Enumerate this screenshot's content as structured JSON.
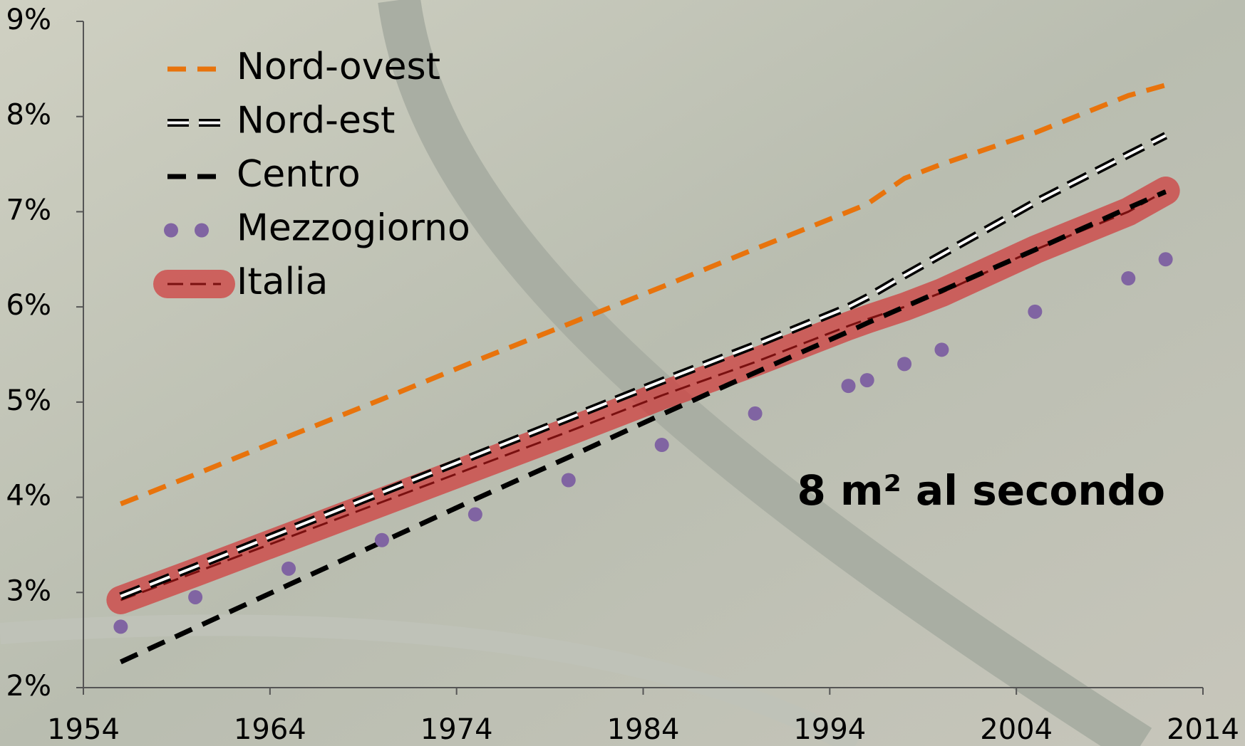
{
  "chart_data": {
    "type": "line",
    "annotation": "8 m² al secondo",
    "x": [
      1956,
      1960,
      1965,
      1970,
      1975,
      1980,
      1985,
      1990,
      1995,
      1996,
      1998,
      2000,
      2005,
      2010,
      2012
    ],
    "series": [
      {
        "name": "Nord-ovest",
        "color": "#e8730c",
        "style": "dashed",
        "values": [
          3.93,
          4.24,
          4.64,
          5.03,
          5.43,
          5.82,
          6.21,
          6.61,
          7.0,
          7.08,
          7.35,
          7.5,
          7.83,
          8.22,
          8.33
        ]
      },
      {
        "name": "Nord-est",
        "color": "#000000",
        "style": "outlined-dashed",
        "values": [
          2.96,
          3.27,
          3.66,
          4.05,
          4.44,
          4.83,
          5.22,
          5.6,
          6.0,
          6.1,
          6.33,
          6.55,
          7.1,
          7.6,
          7.8
        ]
      },
      {
        "name": "Centro",
        "color": "#000000",
        "style": "dashed",
        "values": [
          2.27,
          2.63,
          3.08,
          3.53,
          3.98,
          4.42,
          4.87,
          5.31,
          5.74,
          5.83,
          6.0,
          6.17,
          6.6,
          7.04,
          7.21
        ]
      },
      {
        "name": "Mezzogiorno",
        "color": "#8064a2",
        "style": "dotted",
        "values": [
          2.64,
          2.95,
          3.25,
          3.55,
          3.82,
          4.18,
          4.55,
          4.88,
          5.17,
          5.23,
          5.4,
          5.55,
          5.95,
          6.3,
          6.5
        ]
      },
      {
        "name": "Italia",
        "color": "#d03a3a",
        "style": "band",
        "values": [
          2.92,
          3.21,
          3.58,
          3.95,
          4.32,
          4.69,
          5.07,
          5.42,
          5.8,
          5.87,
          6.0,
          6.15,
          6.6,
          7.0,
          7.22
        ]
      }
    ],
    "xlim": [
      1954,
      2014
    ],
    "xticks": [
      1954,
      1964,
      1974,
      1984,
      1994,
      2004,
      2014
    ],
    "ylim": [
      2,
      9
    ],
    "yticks": [
      {
        "value": 2,
        "label": "2%"
      },
      {
        "value": 3,
        "label": "3%"
      },
      {
        "value": 4,
        "label": "4%"
      },
      {
        "value": 5,
        "label": "5%"
      },
      {
        "value": 6,
        "label": "6%"
      },
      {
        "value": 7,
        "label": "7%"
      },
      {
        "value": 8,
        "label": "8%"
      },
      {
        "value": 9,
        "label": "9%"
      }
    ],
    "legend": "top-left"
  }
}
